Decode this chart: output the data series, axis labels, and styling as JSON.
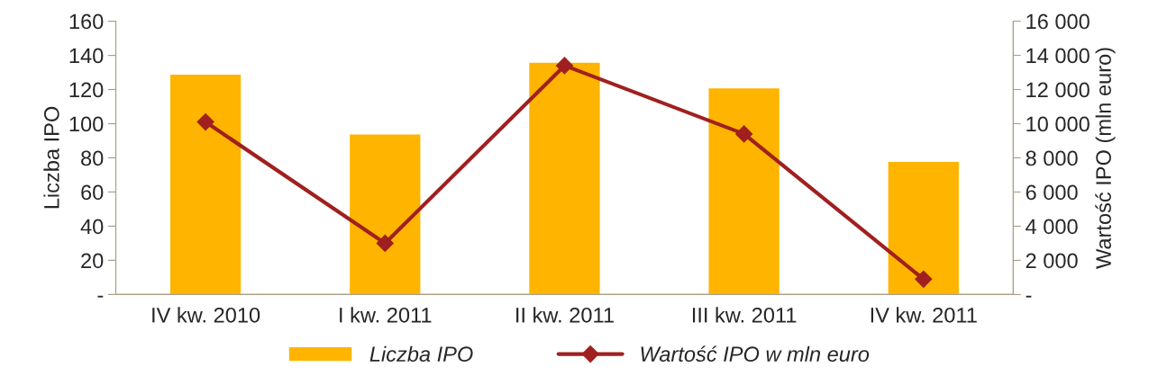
{
  "chart_data": {
    "type": "bar",
    "categories": [
      "IV kw. 2010",
      "I kw. 2011",
      "II kw. 2011",
      "III kw. 2011",
      "IV kw. 2011"
    ],
    "series": [
      {
        "name": "Liczba IPO",
        "color": "#ffb400",
        "values": [
          129,
          94,
          136,
          121,
          78
        ]
      },
      {
        "name": "Wartość IPO w mln euro",
        "type": "line",
        "axis": "y2",
        "color": "#a0201f",
        "marker": "diamond",
        "values": [
          10100,
          3000,
          13400,
          9400,
          900
        ]
      }
    ],
    "ylabel": "Liczba IPO",
    "y2label": "Wartość IPO (mln euro)",
    "ylim": [
      0,
      160
    ],
    "yticks": [
      {
        "value": 0,
        "label": "-"
      },
      20,
      40,
      60,
      80,
      100,
      120,
      140,
      160
    ],
    "y2lim": [
      0,
      16000
    ],
    "y2ticks": [
      {
        "value": 0,
        "label": "-"
      },
      {
        "value": 2000,
        "label": "2 000"
      },
      {
        "value": 4000,
        "label": "4 000"
      },
      {
        "value": 6000,
        "label": "6 000"
      },
      {
        "value": 8000,
        "label": "8 000"
      },
      {
        "value": 10000,
        "label": "10 000"
      },
      {
        "value": 12000,
        "label": "12 000"
      },
      {
        "value": 14000,
        "label": "14 000"
      },
      {
        "value": 16000,
        "label": "16 000"
      }
    ],
    "grid": false,
    "legend": "bottom"
  }
}
